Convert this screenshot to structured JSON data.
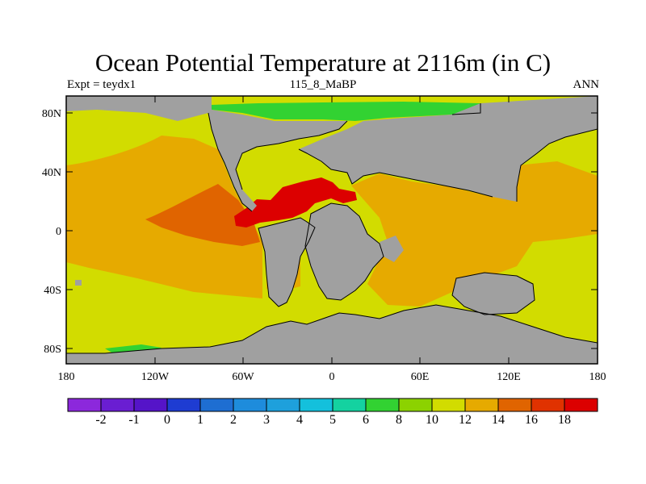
{
  "title": "Ocean Potential Temperature at 2116m (in C)",
  "subtitle_left": "Expt = teydx1",
  "subtitle_center": "115_8_MaBP",
  "subtitle_right": "ANN",
  "colors": {
    "land": "#a0a0a0",
    "c12": "#d2dc00",
    "c14": "#e6aa00",
    "c16": "#e06400",
    "c18": "#dc0000",
    "c8": "#32d232"
  },
  "x_ticks": [
    "180",
    "120W",
    "60W",
    "0",
    "60E",
    "120E",
    "180"
  ],
  "y_ticks": [
    "80N",
    "40N",
    "0",
    "40S",
    "80S"
  ],
  "colorbar": {
    "colors": [
      "#8c28dc",
      "#6a1ed2",
      "#5514c8",
      "#1e3cd2",
      "#1e6ed2",
      "#1e8cdc",
      "#1ea0dc",
      "#14c0dc",
      "#14d2a0",
      "#32d232",
      "#8cd200",
      "#d2dc00",
      "#e6aa00",
      "#e06400",
      "#e03200",
      "#dc0000"
    ],
    "labels": [
      "-2",
      "-1",
      "0",
      "1",
      "2",
      "3",
      "4",
      "5",
      "6",
      "8",
      "10",
      "12",
      "14",
      "16",
      "18"
    ]
  }
}
